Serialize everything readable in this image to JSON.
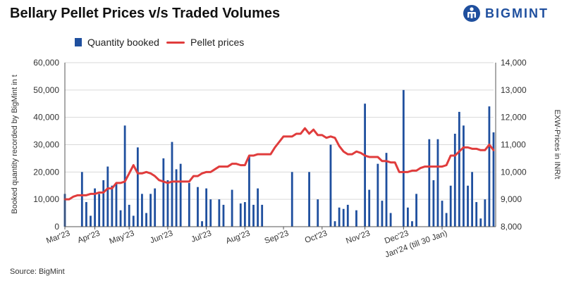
{
  "brand": {
    "name": "BIGMINT",
    "icon": "bigmint-logo-icon",
    "color": "#1f4f9e"
  },
  "source": "Source: BigMint",
  "chart_data": {
    "type": "bar+line",
    "title": "Bellary Pellet Prices v/s Traded Volumes",
    "legend": {
      "placement": "top-left",
      "bar_label": "Quantity booked",
      "line_label": "Pellet prices"
    },
    "ylabel_left": "Booked quantity recorded by BigMint in t",
    "ylabel_right": "EXW-Prices in INR/t",
    "ylim_left": [
      0,
      60000
    ],
    "ylim_right": [
      8000,
      14000
    ],
    "yticks_left": [
      "0",
      "10,000",
      "20,000",
      "30,000",
      "40,000",
      "50,000",
      "60,000"
    ],
    "yticks_right": [
      "8,000",
      "9,000",
      "10,000",
      "11,000",
      "12,000",
      "13,000",
      "14,000"
    ],
    "x_labels": [
      "Mar'23",
      "Apr'23",
      "May'23",
      "Jun'23",
      "Jul'23",
      "Aug'23",
      "Sep'23",
      "Oct'23",
      "Nov'23",
      "Dec'23",
      "Jan'24 (till 30 Jan)"
    ],
    "x_label_positions": [
      0,
      7,
      15,
      24,
      33,
      42,
      51,
      60,
      70,
      79,
      88
    ],
    "n_points": 101,
    "bar_color": "#1f4f9e",
    "line_color": "#e03c3c",
    "quantity_booked": [
      12000,
      0,
      0,
      0,
      20000,
      9000,
      4000,
      14000,
      12000,
      17000,
      22000,
      15000,
      16000,
      6000,
      37000,
      8000,
      4000,
      29000,
      12000,
      5000,
      12000,
      14000,
      0,
      25000,
      17000,
      31000,
      21000,
      23000,
      0,
      16000,
      0,
      14500,
      2000,
      14000,
      10000,
      0,
      10000,
      8000,
      0,
      13500,
      0,
      8500,
      9000,
      26000,
      8000,
      14000,
      8000,
      0,
      0,
      0,
      0,
      0,
      0,
      20000,
      0,
      0,
      0,
      20000,
      0,
      10000,
      0,
      0,
      30000,
      2000,
      7000,
      6500,
      8000,
      0,
      6000,
      0,
      45000,
      13500,
      0,
      23000,
      9500,
      27000,
      5000,
      0,
      0,
      50000,
      7000,
      2000,
      12000,
      0,
      0,
      32000,
      17000,
      32000,
      9500,
      5000,
      15000,
      34000,
      42000,
      37000,
      15000,
      20000,
      9000,
      3000,
      10000,
      44000,
      34500
    ],
    "pellet_prices": [
      9000,
      9000,
      9100,
      9150,
      9150,
      9150,
      9200,
      9200,
      9250,
      9250,
      9400,
      9400,
      9600,
      9600,
      9650,
      9950,
      10250,
      9950,
      9950,
      10000,
      9950,
      9850,
      9700,
      9650,
      9600,
      9650,
      9650,
      9650,
      9650,
      9650,
      9850,
      9850,
      9950,
      10000,
      10000,
      10100,
      10200,
      10200,
      10200,
      10300,
      10300,
      10250,
      10250,
      10600,
      10600,
      10650,
      10650,
      10650,
      10650,
      10900,
      11100,
      11300,
      11300,
      11300,
      11400,
      11400,
      11600,
      11400,
      11550,
      11350,
      11350,
      11250,
      11300,
      11250,
      10950,
      10750,
      10650,
      10650,
      10750,
      10700,
      10600,
      10550,
      10550,
      10550,
      10400,
      10400,
      10350,
      10350,
      10000,
      10000,
      10000,
      10050,
      10050,
      10150,
      10200,
      10200,
      10200,
      10200,
      10200,
      10250,
      10600,
      10600,
      10750,
      10900,
      10900,
      10850,
      10850,
      10800,
      10800,
      11000,
      10800
    ]
  }
}
